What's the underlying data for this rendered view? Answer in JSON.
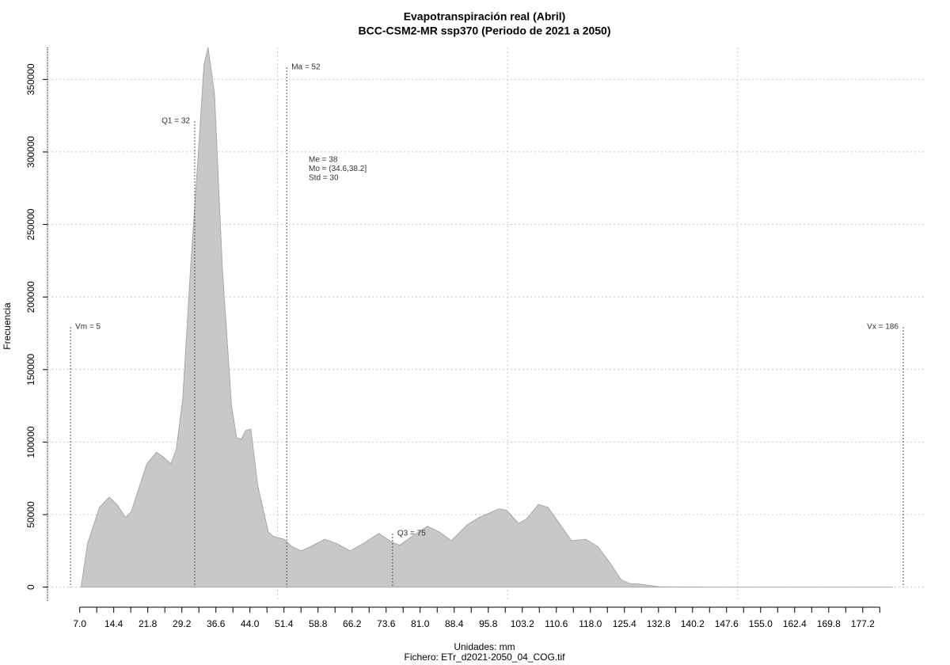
{
  "chart_data": {
    "type": "area",
    "title": "Evapotranspiración real (Abril)",
    "subtitle": "BCC-CSM2-MR ssp370 (Periodo de 2021 a 2050)",
    "x_label": "Unidades: mm",
    "y_label": "Frecuencia",
    "footer": "Fichero: ETr_d2021-2050_04_COG.tif",
    "color": "#c8c8c8",
    "grid": true,
    "xlim": [
      0,
      191
    ],
    "ylim": [
      -10000,
      372000
    ],
    "yticks": [
      0,
      50000,
      100000,
      150000,
      200000,
      250000,
      300000,
      350000
    ],
    "xticks": [
      {
        "value": 7,
        "label": "7.0"
      },
      14.4,
      21.8,
      29.2,
      36.6,
      {
        "value": 44,
        "label": "44.0"
      },
      51.4,
      58.8,
      66.2,
      73.6,
      {
        "value": 81,
        "label": "81.0"
      },
      88.4,
      95.8,
      103.2,
      110.6,
      {
        "value": 118,
        "label": "118.0"
      },
      125.4,
      132.8,
      140.2,
      147.6,
      {
        "value": 155,
        "label": "155.0"
      },
      162.4,
      169.8,
      177.2
    ],
    "xgrid": [
      50,
      100,
      150
    ],
    "x": [
      7.3,
      8.7,
      11.3,
      13.4,
      15.1,
      17,
      18.2,
      21.6,
      23.7,
      25.1,
      26.8,
      28,
      29.4,
      31.1,
      32.8,
      34,
      34.9,
      36.3,
      38,
      40,
      41.1,
      42.1,
      43.1,
      44.2,
      45.7,
      48,
      49.1,
      51.4,
      53.1,
      55.2,
      57.2,
      60.3,
      62.9,
      65.8,
      68.6,
      72,
      74.9,
      76.6,
      79.2,
      82.6,
      85.2,
      87.8,
      91.2,
      93.8,
      98.1,
      99.8,
      102.4,
      104.1,
      106.7,
      108.8,
      111,
      113.9,
      117,
      119.6,
      122.2,
      124.7,
      126.5,
      129,
      133.3,
      144.5,
      183.7
    ],
    "values": [
      0,
      30000,
      55000,
      62000,
      57000,
      48000,
      52000,
      85000,
      93000,
      90000,
      85000,
      95000,
      130000,
      220000,
      300000,
      360000,
      372000,
      340000,
      220000,
      125000,
      103000,
      102000,
      108000,
      109000,
      70000,
      38000,
      35000,
      33000,
      28000,
      25000,
      28000,
      33000,
      30000,
      25000,
      30000,
      37000,
      31000,
      29000,
      35000,
      42000,
      38000,
      32000,
      43000,
      48000,
      54000,
      53000,
      44000,
      47000,
      57000,
      55000,
      45000,
      32000,
      33000,
      28000,
      17000,
      5000,
      2500,
      2000,
      200,
      0,
      0
    ],
    "vlines": [
      {
        "label": "Vm = 5",
        "x": 5
      },
      {
        "label": "Q1 = 32",
        "x": 32
      },
      {
        "label": "Ma = 52",
        "x": 52
      },
      {
        "label": "Q3 = 75",
        "x": 75
      },
      {
        "label": "Vx = 186",
        "x": 186
      }
    ],
    "stats": [
      "Me = 38",
      "Mo = (34.6,38.2]",
      "Std = 30"
    ]
  }
}
